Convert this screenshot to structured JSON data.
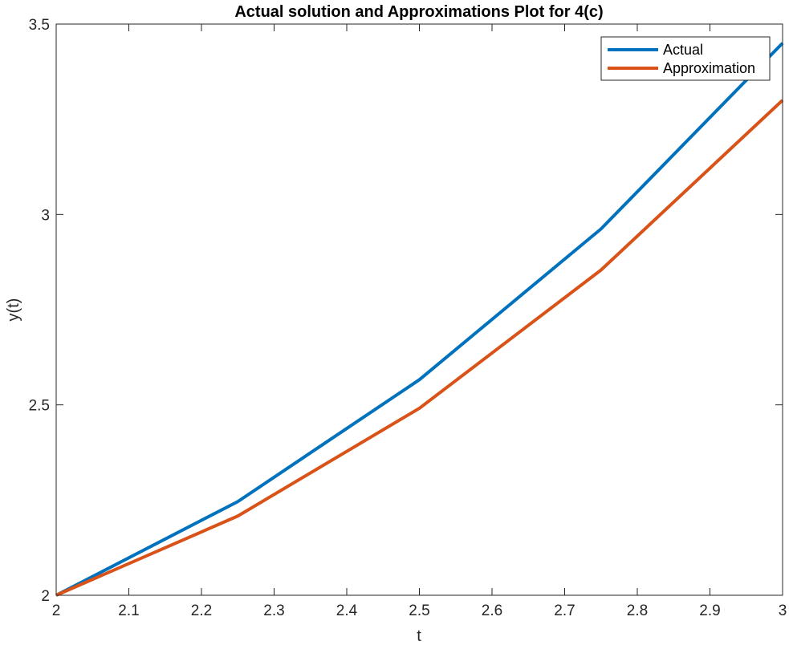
{
  "chart_data": {
    "type": "line",
    "title": "Actual solution and Approximations Plot for 4(c)",
    "xlabel": "t",
    "ylabel": "y(t)",
    "xlim": [
      2,
      3
    ],
    "ylim": [
      2,
      3.5
    ],
    "xticks": [
      2,
      2.1,
      2.2,
      2.3,
      2.4,
      2.5,
      2.6,
      2.7,
      2.8,
      2.9,
      3
    ],
    "xtick_labels": [
      "2",
      "2.1",
      "2.2",
      "2.3",
      "2.4",
      "2.5",
      "2.6",
      "2.7",
      "2.8",
      "2.9",
      "3"
    ],
    "yticks": [
      2,
      2.5,
      3,
      3.5
    ],
    "ytick_labels": [
      "2",
      "2.5",
      "3",
      "3.5"
    ],
    "grid": false,
    "legend_position": "top-right",
    "series": [
      {
        "name": "Actual",
        "color": "#0072BD",
        "x": [
          2,
          2.25,
          2.5,
          2.75,
          3
        ],
        "y": [
          2,
          2.246,
          2.566,
          2.962,
          3.45
        ]
      },
      {
        "name": "Approximation",
        "color": "#D95319",
        "x": [
          2,
          2.25,
          2.5,
          2.75,
          3
        ],
        "y": [
          2,
          2.208,
          2.491,
          2.854,
          3.3
        ]
      }
    ]
  }
}
